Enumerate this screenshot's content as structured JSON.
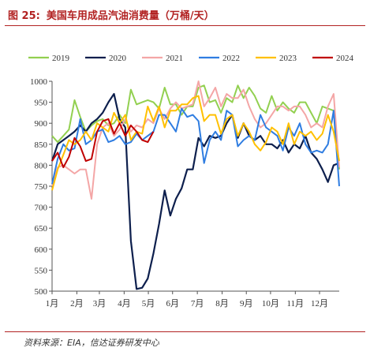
{
  "figure": {
    "label": "图 25:",
    "title": "美国车用成品汽油消费量（万桶/天）",
    "source": "资料来源：EIA，信达证券研发中心"
  },
  "chart_data": {
    "type": "line",
    "title": "美国车用成品汽油消费量（万桶/天）",
    "ylim": [
      500,
      1000
    ],
    "yticks": [
      500,
      550,
      600,
      650,
      700,
      750,
      800,
      850,
      900,
      950,
      1000
    ],
    "xlim": [
      1,
      52
    ],
    "xticks": [
      {
        "week": 1,
        "label": "1月"
      },
      {
        "week": 5.4,
        "label": "2月"
      },
      {
        "week": 9.4,
        "label": "3月"
      },
      {
        "week": 13.8,
        "label": "4月"
      },
      {
        "week": 18.1,
        "label": "5月"
      },
      {
        "week": 22.4,
        "label": "6月"
      },
      {
        "week": 26.8,
        "label": "7月"
      },
      {
        "week": 31.2,
        "label": "8月"
      },
      {
        "week": 35.5,
        "label": "9月"
      },
      {
        "week": 39.8,
        "label": "10月"
      },
      {
        "week": 44.2,
        "label": "11月"
      },
      {
        "week": 48.5,
        "label": "12月"
      }
    ],
    "grid": false,
    "legend_position": "top",
    "series": [
      {
        "name": "2019",
        "color": "#92d050",
        "values": [
          870,
          855,
          870,
          885,
          955,
          915,
          880,
          895,
          905,
          910,
          895,
          900,
          920,
          900,
          980,
          945,
          950,
          955,
          950,
          935,
          985,
          945,
          945,
          920,
          940,
          940,
          985,
          990,
          950,
          955,
          925,
          960,
          950,
          990,
          960,
          985,
          965,
          935,
          925,
          965,
          930,
          950,
          935,
          925,
          950,
          950,
          925,
          900,
          940,
          935,
          930,
          790
        ]
      },
      {
        "name": "2020",
        "color": "#0d1f4d",
        "values": [
          810,
          850,
          860,
          870,
          880,
          895,
          880,
          900,
          910,
          925,
          950,
          970,
          910,
          890,
          620,
          505,
          508,
          530,
          590,
          660,
          740,
          680,
          720,
          745,
          790,
          790,
          865,
          845,
          870,
          865,
          870,
          900,
          920,
          865,
          900,
          870,
          860,
          870,
          850,
          850,
          840,
          860,
          830,
          850,
          840,
          870,
          830,
          815,
          790,
          760,
          800,
          805
        ]
      },
      {
        "name": "2021",
        "color": "#f4a6a6",
        "values": [
          750,
          795,
          800,
          790,
          780,
          790,
          790,
          720,
          850,
          890,
          900,
          870,
          885,
          910,
          880,
          895,
          890,
          910,
          900,
          935,
          910,
          935,
          950,
          935,
          940,
          945,
          1000,
          940,
          960,
          985,
          940,
          970,
          960,
          960,
          980,
          940,
          910,
          890,
          900,
          920,
          940,
          940,
          930,
          940,
          940,
          920,
          890,
          900,
          890,
          940,
          970,
          795
        ]
      },
      {
        "name": "2022",
        "color": "#2f7de1",
        "values": [
          755,
          815,
          850,
          835,
          840,
          910,
          850,
          860,
          880,
          885,
          855,
          860,
          870,
          850,
          855,
          875,
          860,
          870,
          880,
          920,
          920,
          900,
          880,
          935,
          915,
          920,
          905,
          805,
          860,
          880,
          860,
          930,
          920,
          845,
          860,
          870,
          860,
          920,
          890,
          880,
          870,
          835,
          890,
          870,
          900,
          850,
          830,
          835,
          830,
          850,
          930,
          750
        ]
      },
      {
        "name": "2023",
        "color": "#ffc000",
        "values": [
          740,
          790,
          825,
          860,
          850,
          860,
          880,
          860,
          900,
          890,
          880,
          925,
          900,
          920,
          860,
          880,
          875,
          940,
          905,
          940,
          890,
          930,
          930,
          945,
          945,
          960,
          965,
          905,
          920,
          920,
          875,
          910,
          920,
          870,
          900,
          880,
          850,
          835,
          855,
          890,
          880,
          850,
          900,
          850,
          880,
          870,
          880,
          860,
          875,
          920,
          880,
          810
        ]
      },
      {
        "name": "2024",
        "color": "#c00000",
        "values": [
          810,
          830,
          795,
          820,
          865,
          845,
          810,
          815,
          880,
          905,
          910,
          875,
          900,
          870,
          895,
          880,
          860,
          855,
          880
        ]
      }
    ]
  }
}
